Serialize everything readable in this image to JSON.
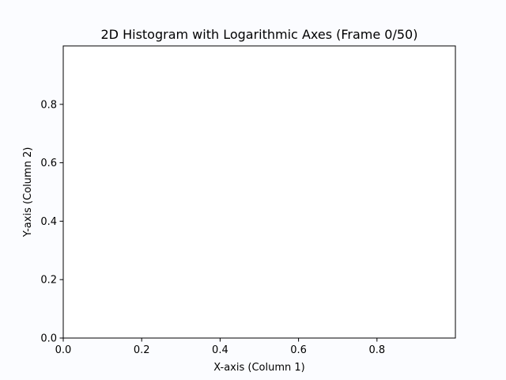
{
  "chart_data": {
    "type": "heatmap",
    "title": "2D Histogram with Logarithmic Axes (Frame 0/50)",
    "xlabel": "X-axis (Column 1)",
    "ylabel": "Y-axis (Column 2)",
    "xlim": [
      0,
      1
    ],
    "ylim": [
      0,
      1
    ],
    "xticks": [
      0.0,
      0.2,
      0.4,
      0.6,
      0.8
    ],
    "xtick_labels": [
      "0.0",
      "0.2",
      "0.4",
      "0.6",
      "0.8"
    ],
    "yticks": [
      0.0,
      0.2,
      0.4,
      0.6,
      0.8
    ],
    "ytick_labels": [
      "0.0",
      "0.2",
      "0.4",
      "0.6",
      "0.8"
    ],
    "grid": false,
    "legend": "none",
    "values": [],
    "colors": {
      "background": "#fbfcff",
      "axes_face": "#ffffff",
      "axes_edge": "#000000"
    }
  }
}
